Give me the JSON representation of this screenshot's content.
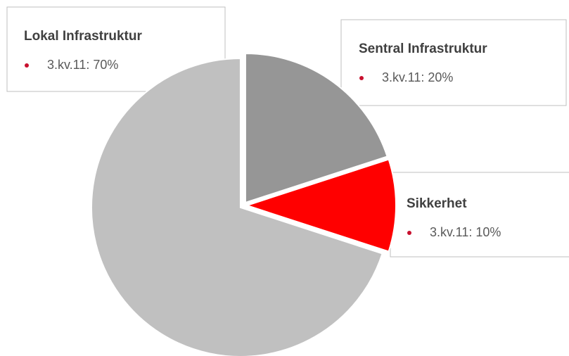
{
  "chart_data": {
    "type": "pie",
    "categories": [
      "Sentral Infrastruktur",
      "Sikkerhet",
      "Lokal Infrastruktur"
    ],
    "values": [
      20,
      10,
      70
    ],
    "value_labels": [
      "3.kv.11: 20%",
      "3.kv.11: 10%",
      "3.kv.11: 70%"
    ],
    "colors": [
      "#969696",
      "#ff0000",
      "#c0c0c0"
    ]
  }
}
